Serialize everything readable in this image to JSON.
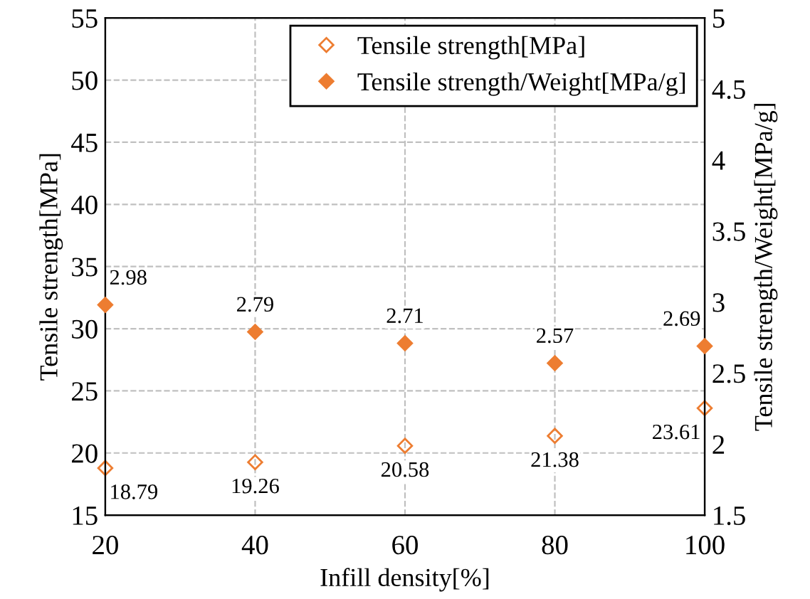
{
  "chart_data": {
    "type": "scatter",
    "xlabel": "Infill density[%]",
    "ylabel": "Tensile strength[MPa]",
    "y2label": "Tensile strength/Weight[MPa/g]",
    "x": [
      20,
      40,
      60,
      80,
      100
    ],
    "series": [
      {
        "name": "Tensile strength[MPa]",
        "color": "#ed7d31",
        "values": [
          18.79,
          19.26,
          20.58,
          21.38,
          23.61
        ],
        "marker": "diamond"
      },
      {
        "name": "Tensile strength/Weight[MPa/g]",
        "color": "#ed7d31",
        "values": [
          2.98,
          2.79,
          2.71,
          2.57,
          2.69
        ],
        "marker": "diamond",
        "axis": "y2"
      }
    ],
    "xlim": [
      20,
      100
    ],
    "xticks": [
      20,
      40,
      60,
      80,
      100
    ],
    "ylim": [
      15,
      55
    ],
    "yticks": [
      15,
      20,
      25,
      30,
      35,
      40,
      45,
      50,
      55
    ],
    "y2lim": [
      1.5,
      5
    ],
    "y2ticks": [
      1.5,
      2,
      2.5,
      3,
      3.5,
      4,
      4.5,
      5
    ],
    "grid": true,
    "legend": "top right",
    "data_labels": true
  }
}
